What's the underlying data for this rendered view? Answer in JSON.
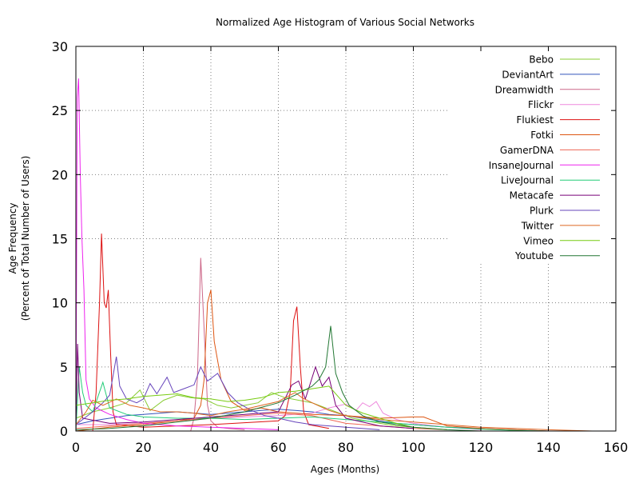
{
  "chart_data": {
    "type": "line",
    "title": "Normalized Age Histogram of Various Social Networks",
    "xlabel": "Ages (Months)",
    "ylabel_line1": "Age Frequency",
    "ylabel_line2": "(Percent of Total Number of Users)",
    "xlim": [
      0,
      160
    ],
    "ylim": [
      0,
      30
    ],
    "xticks": [
      0,
      20,
      40,
      60,
      80,
      100,
      120,
      140,
      160
    ],
    "yticks": [
      0,
      5,
      10,
      15,
      20,
      25,
      30
    ],
    "grid": true,
    "legend_position": "top-right",
    "series": [
      {
        "name": "Bebo",
        "color": "#88cc33",
        "points": [
          [
            0,
            1
          ],
          [
            5,
            1.5
          ],
          [
            10,
            1.8
          ],
          [
            15,
            2.2
          ],
          [
            19,
            3.2
          ],
          [
            22,
            1.6
          ],
          [
            26,
            2.4
          ],
          [
            30,
            2.8
          ],
          [
            34,
            2.6
          ],
          [
            38,
            2.5
          ],
          [
            42,
            2
          ],
          [
            46,
            1.8
          ],
          [
            50,
            2
          ],
          [
            54,
            2.2
          ],
          [
            58,
            3
          ],
          [
            62,
            2.6
          ],
          [
            66,
            2.4
          ],
          [
            70,
            2.2
          ],
          [
            74,
            1.8
          ],
          [
            78,
            1.4
          ],
          [
            82,
            1
          ],
          [
            86,
            0.8
          ],
          [
            90,
            0.6
          ],
          [
            95,
            0.4
          ],
          [
            100,
            0.3
          ]
        ]
      },
      {
        "name": "DeviantArt",
        "color": "#3355bb",
        "points": [
          [
            0,
            0.5
          ],
          [
            5,
            0.8
          ],
          [
            10,
            1
          ],
          [
            15,
            1.2
          ],
          [
            20,
            1.3
          ],
          [
            25,
            1.4
          ],
          [
            30,
            1.5
          ],
          [
            35,
            1.4
          ],
          [
            40,
            1.3
          ],
          [
            45,
            1.4
          ],
          [
            50,
            1.5
          ],
          [
            55,
            1.6
          ],
          [
            60,
            1.7
          ],
          [
            65,
            1.6
          ],
          [
            70,
            1.5
          ],
          [
            75,
            1.3
          ],
          [
            80,
            1.2
          ],
          [
            85,
            1
          ],
          [
            90,
            0.8
          ],
          [
            95,
            0.6
          ],
          [
            100,
            0.5
          ],
          [
            110,
            0.3
          ],
          [
            120,
            0.2
          ],
          [
            130,
            0.1
          ],
          [
            140,
            0
          ]
        ]
      },
      {
        "name": "Dreamwidth",
        "color": "#cc6688",
        "points": [
          [
            34,
            0
          ],
          [
            35,
            1
          ],
          [
            36,
            4
          ],
          [
            37,
            13.5
          ],
          [
            38,
            8
          ],
          [
            39,
            2
          ],
          [
            40,
            0.8
          ],
          [
            42,
            0.3
          ],
          [
            45,
            0.2
          ],
          [
            50,
            0.1
          ]
        ]
      },
      {
        "name": "Flickr",
        "color": "#ee88dd",
        "points": [
          [
            0,
            0.5
          ],
          [
            10,
            0.5
          ],
          [
            20,
            0.6
          ],
          [
            30,
            0.8
          ],
          [
            40,
            1
          ],
          [
            50,
            1.1
          ],
          [
            60,
            1.2
          ],
          [
            70,
            1.4
          ],
          [
            75,
            1.8
          ],
          [
            80,
            2.1
          ],
          [
            83,
            1.6
          ],
          [
            85,
            2.2
          ],
          [
            87,
            1.9
          ],
          [
            89,
            2.3
          ],
          [
            91,
            1.4
          ],
          [
            95,
            0.9
          ],
          [
            100,
            0.6
          ],
          [
            110,
            0.3
          ],
          [
            120,
            0.1
          ]
        ]
      },
      {
        "name": "Flukiest",
        "color": "#dd1111",
        "points": [
          [
            5,
            0
          ],
          [
            6,
            3
          ],
          [
            7,
            10
          ],
          [
            7.6,
            15.4
          ],
          [
            8.4,
            10
          ],
          [
            9,
            9.6
          ],
          [
            9.6,
            11
          ],
          [
            10.3,
            6
          ],
          [
            11,
            1.5
          ],
          [
            12,
            0.5
          ],
          [
            20,
            0.3
          ],
          [
            40,
            0.5
          ],
          [
            60,
            0.8
          ],
          [
            62,
            1.2
          ],
          [
            63.5,
            3
          ],
          [
            64.5,
            8.6
          ],
          [
            65.5,
            9.7
          ],
          [
            66.5,
            5
          ],
          [
            67.5,
            1.5
          ],
          [
            69,
            0.5
          ],
          [
            75,
            0.2
          ]
        ]
      },
      {
        "name": "Fotki",
        "color": "#dd5511",
        "points": [
          [
            0,
            0
          ],
          [
            10,
            0.3
          ],
          [
            20,
            0.5
          ],
          [
            30,
            0.8
          ],
          [
            35,
            1
          ],
          [
            37,
            2
          ],
          [
            38,
            4
          ],
          [
            39,
            10
          ],
          [
            40,
            11
          ],
          [
            41,
            7
          ],
          [
            43,
            4
          ],
          [
            46,
            2.3
          ],
          [
            50,
            1.6
          ],
          [
            55,
            1.8
          ],
          [
            60,
            1.5
          ],
          [
            70,
            1.3
          ],
          [
            80,
            1.2
          ],
          [
            90,
            1
          ],
          [
            100,
            1.1
          ],
          [
            103,
            1.1
          ],
          [
            106,
            0.8
          ],
          [
            110,
            0.4
          ],
          [
            120,
            0.2
          ],
          [
            130,
            0.1
          ],
          [
            140,
            0
          ]
        ]
      },
      {
        "name": "GamerDNA",
        "color": "#ee6655",
        "points": [
          [
            0,
            0.2
          ],
          [
            10,
            0.4
          ],
          [
            20,
            0.6
          ],
          [
            30,
            0.8
          ],
          [
            40,
            1
          ],
          [
            50,
            1.2
          ],
          [
            60,
            1.4
          ],
          [
            65,
            1.3
          ],
          [
            70,
            1.2
          ],
          [
            75,
            0.9
          ],
          [
            80,
            0.6
          ],
          [
            90,
            0.4
          ],
          [
            100,
            0.2
          ],
          [
            110,
            0.1
          ]
        ]
      },
      {
        "name": "InsaneJournal",
        "color": "#ee22ee",
        "points": [
          [
            0,
            0
          ],
          [
            0.4,
            26
          ],
          [
            0.8,
            27.5
          ],
          [
            1.3,
            20
          ],
          [
            1.8,
            15
          ],
          [
            2.4,
            11
          ],
          [
            3,
            4
          ],
          [
            4,
            2.5
          ],
          [
            6,
            1.8
          ],
          [
            10,
            1.3
          ],
          [
            15,
            0.9
          ],
          [
            20,
            0.6
          ],
          [
            30,
            0.4
          ],
          [
            40,
            0.3
          ],
          [
            50,
            0.2
          ],
          [
            60,
            0.1
          ]
        ]
      },
      {
        "name": "LiveJournal",
        "color": "#22cc77",
        "points": [
          [
            0,
            0
          ],
          [
            1,
            5
          ],
          [
            2,
            3
          ],
          [
            3,
            2
          ],
          [
            5,
            1.5
          ],
          [
            8,
            3.8
          ],
          [
            10,
            1.8
          ],
          [
            15,
            1.3
          ],
          [
            20,
            1.1
          ],
          [
            30,
            1
          ],
          [
            40,
            1
          ],
          [
            50,
            0.9
          ],
          [
            60,
            1
          ],
          [
            70,
            1.1
          ],
          [
            80,
            0.9
          ],
          [
            90,
            0.7
          ],
          [
            100,
            0.5
          ],
          [
            110,
            0.3
          ],
          [
            120,
            0.15
          ],
          [
            130,
            0.05
          ],
          [
            140,
            0
          ]
        ]
      },
      {
        "name": "Metacafe",
        "color": "#770077",
        "points": [
          [
            0,
            0
          ],
          [
            0.5,
            6.8
          ],
          [
            1,
            3
          ],
          [
            2,
            1
          ],
          [
            10,
            0.6
          ],
          [
            20,
            0.7
          ],
          [
            30,
            0.9
          ],
          [
            40,
            1.1
          ],
          [
            50,
            1.3
          ],
          [
            60,
            1.5
          ],
          [
            64,
            3.6
          ],
          [
            66,
            3.9
          ],
          [
            68,
            2.5
          ],
          [
            71,
            5
          ],
          [
            73,
            3.5
          ],
          [
            75,
            4.2
          ],
          [
            77,
            2
          ],
          [
            80,
            1
          ],
          [
            90,
            0.4
          ],
          [
            100,
            0.2
          ]
        ]
      },
      {
        "name": "Plurk",
        "color": "#6644bb",
        "points": [
          [
            0,
            0.5
          ],
          [
            5,
            1.5
          ],
          [
            8,
            2.2
          ],
          [
            10,
            2.8
          ],
          [
            12,
            5.8
          ],
          [
            13,
            3.5
          ],
          [
            15,
            2.5
          ],
          [
            18,
            2.2
          ],
          [
            20,
            2.5
          ],
          [
            22,
            3.7
          ],
          [
            24,
            2.9
          ],
          [
            27,
            4.2
          ],
          [
            29,
            3
          ],
          [
            32,
            3.3
          ],
          [
            35,
            3.6
          ],
          [
            37,
            5
          ],
          [
            39,
            3.9
          ],
          [
            42,
            4.5
          ],
          [
            45,
            3
          ],
          [
            48,
            2.2
          ],
          [
            52,
            1.6
          ],
          [
            56,
            1.2
          ],
          [
            60,
            1
          ],
          [
            65,
            0.7
          ],
          [
            70,
            0.5
          ],
          [
            80,
            0.3
          ],
          [
            90,
            0.1
          ]
        ]
      },
      {
        "name": "Twitter",
        "color": "#dd6622",
        "points": [
          [
            0,
            0.5
          ],
          [
            3,
            1.5
          ],
          [
            5,
            2.4
          ],
          [
            8,
            2
          ],
          [
            12,
            2.5
          ],
          [
            16,
            2
          ],
          [
            20,
            1.8
          ],
          [
            25,
            1.5
          ],
          [
            30,
            1.5
          ],
          [
            35,
            1.4
          ],
          [
            40,
            1.2
          ],
          [
            45,
            1.5
          ],
          [
            50,
            1.7
          ],
          [
            55,
            2
          ],
          [
            60,
            2.3
          ],
          [
            62,
            2.6
          ],
          [
            65,
            3
          ],
          [
            67,
            2.6
          ],
          [
            70,
            2.2
          ],
          [
            75,
            1.6
          ],
          [
            80,
            1.2
          ],
          [
            90,
            0.9
          ],
          [
            100,
            0.7
          ],
          [
            110,
            0.5
          ],
          [
            120,
            0.3
          ],
          [
            130,
            0.2
          ],
          [
            140,
            0.1
          ],
          [
            153,
            0
          ]
        ]
      },
      {
        "name": "Vimeo",
        "color": "#77cc11",
        "points": [
          [
            0,
            2
          ],
          [
            5,
            2.2
          ],
          [
            10,
            2.4
          ],
          [
            15,
            2.5
          ],
          [
            20,
            2.7
          ],
          [
            25,
            2.8
          ],
          [
            30,
            2.9
          ],
          [
            35,
            2.6
          ],
          [
            40,
            2.5
          ],
          [
            45,
            2.3
          ],
          [
            50,
            2.4
          ],
          [
            55,
            2.6
          ],
          [
            60,
            3
          ],
          [
            65,
            3.1
          ],
          [
            70,
            3.3
          ],
          [
            75,
            3.5
          ],
          [
            80,
            2
          ],
          [
            85,
            1.4
          ],
          [
            90,
            1
          ],
          [
            95,
            0.6
          ],
          [
            100,
            0.3
          ],
          [
            110,
            0.1
          ]
        ]
      },
      {
        "name": "Youtube",
        "color": "#227733",
        "points": [
          [
            0,
            0.1
          ],
          [
            10,
            0.2
          ],
          [
            20,
            0.4
          ],
          [
            30,
            0.7
          ],
          [
            40,
            1
          ],
          [
            50,
            1.5
          ],
          [
            60,
            2.2
          ],
          [
            65,
            2.8
          ],
          [
            70,
            3.5
          ],
          [
            72,
            4
          ],
          [
            74,
            5
          ],
          [
            75.5,
            8.2
          ],
          [
            77,
            4.5
          ],
          [
            79,
            3
          ],
          [
            81,
            2
          ],
          [
            85,
            1.2
          ],
          [
            90,
            0.7
          ],
          [
            100,
            0.3
          ],
          [
            110,
            0.1
          ],
          [
            120,
            0
          ]
        ]
      }
    ]
  }
}
